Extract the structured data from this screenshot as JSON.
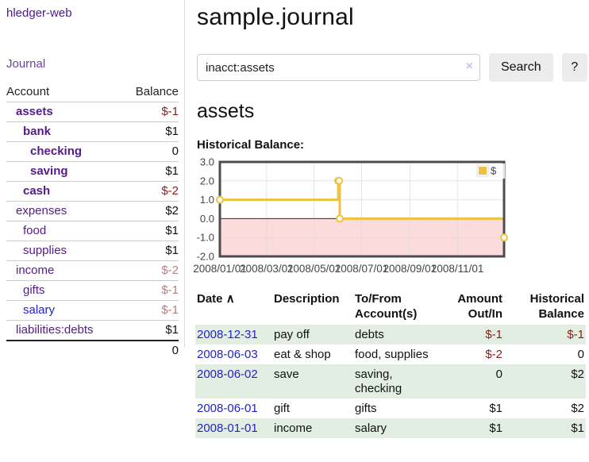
{
  "app": {
    "title": "hledger-web"
  },
  "sidebar": {
    "journal_link": "Journal",
    "accounts_table": {
      "headers": {
        "account": "Account",
        "balance": "Balance"
      },
      "rows": [
        {
          "name": "assets",
          "balance": "$-1",
          "indent": 1,
          "bold": true,
          "name_color": "purple",
          "balance_color": "neg"
        },
        {
          "name": "bank",
          "balance": "$1",
          "indent": 2,
          "bold": true,
          "name_color": "purple",
          "balance_color": "black"
        },
        {
          "name": "checking",
          "balance": "0",
          "indent": 3,
          "bold": true,
          "name_color": "purple",
          "balance_color": "black"
        },
        {
          "name": "saving",
          "balance": "$1",
          "indent": 3,
          "bold": true,
          "name_color": "purple",
          "balance_color": "black"
        },
        {
          "name": "cash",
          "balance": "$-2",
          "indent": 2,
          "bold": true,
          "name_color": "purple",
          "balance_color": "neg"
        },
        {
          "name": "expenses",
          "balance": "$2",
          "indent": 1,
          "bold": false,
          "name_color": "purple",
          "balance_color": "black"
        },
        {
          "name": "food",
          "balance": "$1",
          "indent": 2,
          "bold": false,
          "name_color": "purple",
          "balance_color": "black"
        },
        {
          "name": "supplies",
          "balance": "$1",
          "indent": 2,
          "bold": false,
          "name_color": "purple",
          "balance_color": "black"
        },
        {
          "name": "income",
          "balance": "$-2",
          "indent": 1,
          "bold": false,
          "name_color": "purple",
          "balance_color": "negmuted"
        },
        {
          "name": "gifts",
          "balance": "$-1",
          "indent": 2,
          "bold": false,
          "name_color": "purple",
          "balance_color": "negmuted"
        },
        {
          "name": "salary",
          "balance": "$-1",
          "indent": 2,
          "bold": false,
          "name_color": "blue",
          "balance_color": "negmuted"
        },
        {
          "name": "liabilities:debts",
          "balance": "$1",
          "indent": 1,
          "bold": false,
          "name_color": "purple",
          "balance_color": "black"
        }
      ],
      "total": "0"
    }
  },
  "header": {
    "title": "sample.journal"
  },
  "search": {
    "value": "inacct:assets",
    "clear_icon": "×",
    "button_label": "Search",
    "help_label": "?"
  },
  "account_page": {
    "heading": "assets",
    "chart_title": "Historical Balance:"
  },
  "chart_data": {
    "type": "line",
    "style": "step",
    "title": "Historical Balance",
    "x_range": [
      "2008-01-01",
      "2008-12-31"
    ],
    "ylim": [
      -2,
      3
    ],
    "y_ticks": [
      3.0,
      2.0,
      1.0,
      0.0,
      -1.0,
      -2.0
    ],
    "y_tick_labels": [
      "3.0",
      "2.0",
      "1.0",
      "0.0",
      "-1.0",
      "-2.0"
    ],
    "x_tick_labels": [
      "2008/01/01",
      "2008/03/01",
      "2008/05/01",
      "2008/07/01",
      "2008/09/01",
      "2008/11/01"
    ],
    "series": [
      {
        "name": "$",
        "color": "#edc240",
        "points": [
          [
            "2008-01-01",
            1
          ],
          [
            "2008-06-01",
            2
          ],
          [
            "2008-06-02",
            2
          ],
          [
            "2008-06-03",
            0
          ],
          [
            "2008-12-31",
            -1
          ]
        ]
      }
    ],
    "legend": {
      "label": "$",
      "position": "top-right"
    },
    "grid": true,
    "negative_region_color": "#fbdbdb",
    "zero_line_color": "#8b0000",
    "border_color": "#4d4d4d",
    "gridline_color": "#dcdcdc",
    "tick_label_color": "#444444"
  },
  "register": {
    "headers": {
      "date": "Date",
      "sort_icon": "∧",
      "description": "Description",
      "accounts": "To/From\nAccount(s)",
      "amount": "Amount\nOut/In",
      "balance": "Historical\nBalance"
    },
    "rows": [
      {
        "date": "2008-12-31",
        "description": "pay off",
        "accounts": "debts",
        "amount": "$-1",
        "amount_negative": true,
        "balance": "$-1",
        "balance_negative": true
      },
      {
        "date": "2008-06-03",
        "description": "eat & shop",
        "accounts": "food, supplies",
        "amount": "$-2",
        "amount_negative": true,
        "balance": "0",
        "balance_negative": false
      },
      {
        "date": "2008-06-02",
        "description": "save",
        "accounts": "saving, checking",
        "amount": "0",
        "amount_negative": false,
        "balance": "$2",
        "balance_negative": false
      },
      {
        "date": "2008-06-01",
        "description": "gift",
        "accounts": "gifts",
        "amount": "$1",
        "amount_negative": false,
        "balance": "$2",
        "balance_negative": false
      },
      {
        "date": "2008-01-01",
        "description": "income",
        "accounts": "salary",
        "amount": "$1",
        "amount_negative": false,
        "balance": "$1",
        "balance_negative": false
      }
    ]
  },
  "colors": {
    "link_purple": "#551a8b",
    "link_blue": "#2222cc",
    "negative": "#8b1c1c",
    "negative_muted": "#bd7b7b",
    "row_shade_green": "#e2eee2",
    "series_gold": "#edc240"
  }
}
